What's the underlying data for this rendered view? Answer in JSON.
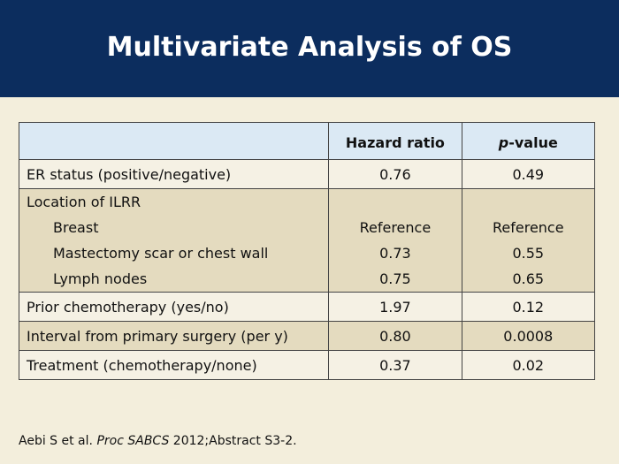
{
  "header": {
    "title": "Multivariate Analysis of OS"
  },
  "table": {
    "columns": [
      {
        "text": "Hazard ratio"
      },
      {
        "italic": "p",
        "text": "-value"
      }
    ],
    "rows": [
      {
        "label": "ER status (positive/negative)",
        "hr": "0.76",
        "p": "0.49"
      },
      {
        "label": "Location of ILRR",
        "items": [
          {
            "label": "Breast",
            "hr": "Reference",
            "p": "Reference"
          },
          {
            "label": "Mastectomy scar or chest wall",
            "hr": "0.73",
            "p": "0.55"
          },
          {
            "label": "Lymph nodes",
            "hr": "0.75",
            "p": "0.65"
          }
        ]
      },
      {
        "label": "Prior chemotherapy (yes/no)",
        "hr": "1.97",
        "p": "0.12"
      },
      {
        "label": "Interval from primary surgery (per y)",
        "hr": "0.80",
        "p": "0.0008"
      },
      {
        "label": "Treatment (chemotherapy/none)",
        "hr": "0.37",
        "p": "0.02"
      }
    ]
  },
  "footnote": {
    "authors": "Aebi S et al.",
    "journal": "Proc SABCS",
    "rest": "2012;Abstract S3-2."
  }
}
